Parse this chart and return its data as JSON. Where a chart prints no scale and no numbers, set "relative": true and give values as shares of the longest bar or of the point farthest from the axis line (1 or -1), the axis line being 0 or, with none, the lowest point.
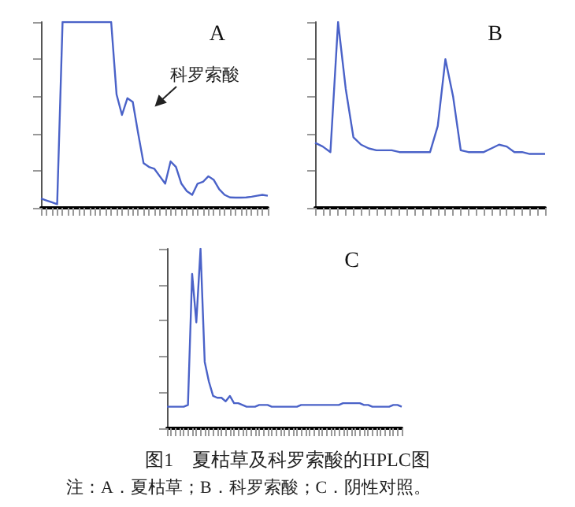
{
  "chart_data": [
    {
      "type": "line",
      "title": "A",
      "relative": true,
      "tick_labels": false,
      "grid": false,
      "line_style": "solid",
      "color": "#4a62c8",
      "annotations": [
        "科罗索酸"
      ],
      "categories": [
        null,
        null,
        null,
        null,
        null,
        null,
        null,
        null,
        null,
        null,
        null,
        null,
        null,
        null,
        null,
        null,
        null,
        null,
        null,
        null,
        null,
        null,
        null,
        null,
        null,
        null,
        null,
        null,
        null,
        null,
        null,
        null,
        null,
        null,
        null,
        null,
        null,
        null,
        null,
        null,
        null,
        null,
        null
      ],
      "values": [
        0.05,
        0.04,
        0.03,
        0.02,
        1,
        1,
        1,
        1,
        1,
        1,
        1,
        1,
        1,
        1,
        0.61,
        0.5,
        0.59,
        0.57,
        0.4,
        0.24,
        0.22,
        0.21,
        0.17,
        0.13,
        0.25,
        0.22,
        0.13,
        0.09,
        0.07,
        0.13,
        0.14,
        0.17,
        0.15,
        0.1,
        0.07,
        0.056,
        0.055,
        0.055,
        0.056,
        0.06,
        0.065,
        0.07,
        0.065
      ]
    },
    {
      "type": "line",
      "title": "B",
      "relative": true,
      "tick_labels": false,
      "grid": false,
      "line_style": "solid",
      "color": "#4a62c8",
      "categories": [
        null,
        null,
        null,
        null,
        null,
        null,
        null,
        null,
        null,
        null,
        null,
        null,
        null,
        null,
        null,
        null,
        null,
        null,
        null,
        null,
        null,
        null,
        null,
        null,
        null,
        null,
        null,
        null,
        null,
        null,
        null
      ],
      "values": [
        0.35,
        0.33,
        0.3,
        1,
        0.64,
        0.38,
        0.34,
        0.32,
        0.31,
        0.31,
        0.31,
        0.3,
        0.3,
        0.3,
        0.3,
        0.3,
        0.44,
        0.8,
        0.6,
        0.31,
        0.3,
        0.3,
        0.3,
        0.32,
        0.34,
        0.33,
        0.3,
        0.3,
        0.29,
        0.29,
        0.29
      ]
    },
    {
      "type": "line",
      "title": "C",
      "relative": true,
      "tick_labels": false,
      "grid": false,
      "line_style": "solid",
      "color": "#4a62c8",
      "annotations": [
        "图1　夏枯草及科罗索酸的HPLC图",
        "注：A．夏枯草；B．科罗索酸；C．阴性对照。"
      ],
      "categories": [
        null,
        null,
        null,
        null,
        null,
        null,
        null,
        null,
        null,
        null,
        null,
        null,
        null,
        null,
        null,
        null,
        null,
        null,
        null,
        null,
        null,
        null,
        null,
        null,
        null,
        null,
        null,
        null,
        null,
        null,
        null,
        null,
        null,
        null,
        null,
        null,
        null,
        null,
        null,
        null,
        null,
        null,
        null,
        null,
        null,
        null,
        null,
        null,
        null,
        null,
        null,
        null,
        null,
        null,
        null,
        null,
        null
      ],
      "values": [
        0.12,
        0.12,
        0.12,
        0.12,
        0.12,
        0.13,
        0.86,
        0.59,
        1,
        0.37,
        0.26,
        0.18,
        0.17,
        0.17,
        0.15,
        0.18,
        0.14,
        0.14,
        0.13,
        0.12,
        0.12,
        0.12,
        0.13,
        0.13,
        0.13,
        0.12,
        0.12,
        0.12,
        0.12,
        0.12,
        0.12,
        0.12,
        0.13,
        0.13,
        0.13,
        0.13,
        0.13,
        0.13,
        0.13,
        0.13,
        0.13,
        0.13,
        0.14,
        0.14,
        0.14,
        0.14,
        0.14,
        0.13,
        0.13,
        0.12,
        0.12,
        0.12,
        0.12,
        0.12,
        0.13,
        0.13,
        0.12
      ]
    }
  ]
}
